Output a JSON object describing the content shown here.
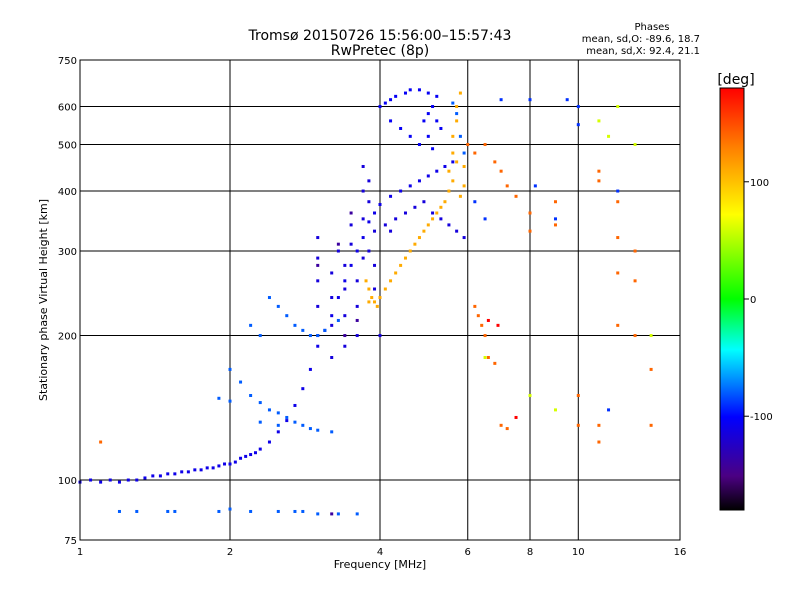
{
  "chart_data": {
    "type": "scatter",
    "title": "Tromsø 20150726 15:56:00–15:57:43",
    "subtitle": "RwPretec (8p)",
    "xlabel": "Frequency [MHz]",
    "ylabel": "Stationary phase Virtual Height [km]",
    "xscale": "log",
    "yscale": "log",
    "xlim": [
      1,
      16
    ],
    "ylim": [
      75,
      750
    ],
    "x_ticks": [
      1,
      2,
      4,
      6,
      8,
      10,
      16
    ],
    "y_ticks": [
      75,
      100,
      200,
      300,
      400,
      500,
      600,
      750
    ],
    "grid": true,
    "stats": {
      "header": "Phases",
      "o_line": "mean, sd,O: -89.6, 18.7",
      "x_line": "mean, sd,X: 92.4, 21.1"
    },
    "colorbar": {
      "label": "[deg]",
      "range": [
        -180,
        180
      ],
      "ticks": [
        100,
        0,
        -100
      ],
      "tick_labels": [
        "100",
        "0",
        "-100"
      ],
      "placement": "right"
    },
    "series": [
      {
        "name": "",
        "phase": -110,
        "points": [
          [
            1.0,
            99
          ],
          [
            1.05,
            100
          ],
          [
            1.1,
            99
          ],
          [
            1.15,
            100
          ],
          [
            1.2,
            99
          ],
          [
            1.25,
            100
          ],
          [
            1.3,
            100
          ],
          [
            1.35,
            101
          ],
          [
            1.4,
            102
          ],
          [
            1.45,
            102
          ],
          [
            1.5,
            103
          ],
          [
            1.55,
            103
          ],
          [
            1.6,
            104
          ],
          [
            1.65,
            104
          ],
          [
            1.7,
            105
          ],
          [
            1.75,
            105
          ],
          [
            1.8,
            106
          ],
          [
            1.85,
            106
          ],
          [
            1.9,
            107
          ],
          [
            1.95,
            108
          ],
          [
            2.0,
            108
          ],
          [
            2.05,
            109
          ],
          [
            2.1,
            111
          ],
          [
            2.15,
            112
          ],
          [
            2.2,
            113
          ],
          [
            2.25,
            114
          ],
          [
            2.3,
            116
          ],
          [
            2.4,
            120
          ],
          [
            2.5,
            126
          ],
          [
            2.6,
            133
          ],
          [
            2.7,
            143
          ],
          [
            2.8,
            155
          ],
          [
            2.9,
            170
          ],
          [
            3.0,
            190
          ],
          [
            3.1,
            205
          ],
          [
            3.2,
            220
          ],
          [
            3.3,
            240
          ],
          [
            3.4,
            260
          ],
          [
            3.5,
            280
          ],
          [
            3.6,
            300
          ],
          [
            3.7,
            320
          ],
          [
            3.8,
            345
          ],
          [
            3.9,
            360
          ],
          [
            4.0,
            375
          ],
          [
            4.2,
            390
          ],
          [
            4.4,
            400
          ],
          [
            4.6,
            410
          ],
          [
            4.8,
            420
          ],
          [
            5.0,
            430
          ],
          [
            5.2,
            440
          ],
          [
            5.4,
            450
          ],
          [
            5.6,
            460
          ]
        ]
      },
      {
        "name": "",
        "phase": -115,
        "points": [
          [
            3.0,
            200
          ],
          [
            3.0,
            230
          ],
          [
            3.0,
            260
          ],
          [
            3.0,
            290
          ],
          [
            3.0,
            320
          ],
          [
            3.2,
            180
          ],
          [
            3.2,
            210
          ],
          [
            3.2,
            240
          ],
          [
            3.2,
            270
          ],
          [
            3.3,
            300
          ],
          [
            3.4,
            190
          ],
          [
            3.4,
            220
          ],
          [
            3.4,
            250
          ],
          [
            3.4,
            280
          ],
          [
            3.5,
            310
          ],
          [
            3.5,
            340
          ],
          [
            3.6,
            200
          ],
          [
            3.6,
            230
          ],
          [
            3.6,
            260
          ],
          [
            3.7,
            290
          ],
          [
            3.7,
            350
          ],
          [
            3.7,
            400
          ],
          [
            3.7,
            450
          ],
          [
            3.8,
            300
          ],
          [
            3.8,
            380
          ],
          [
            3.8,
            420
          ],
          [
            3.9,
            250
          ],
          [
            3.9,
            280
          ],
          [
            3.9,
            330
          ],
          [
            4.0,
            200
          ],
          [
            4.1,
            340
          ],
          [
            4.2,
            330
          ],
          [
            4.3,
            350
          ],
          [
            4.5,
            360
          ],
          [
            4.7,
            370
          ],
          [
            4.9,
            380
          ],
          [
            5.1,
            360
          ],
          [
            5.3,
            350
          ],
          [
            5.5,
            340
          ],
          [
            5.7,
            330
          ],
          [
            5.9,
            320
          ]
        ]
      },
      {
        "name": "",
        "phase": -105,
        "points": [
          [
            4.0,
            600
          ],
          [
            4.1,
            610
          ],
          [
            4.2,
            620
          ],
          [
            4.3,
            630
          ],
          [
            4.5,
            640
          ],
          [
            4.6,
            650
          ],
          [
            4.8,
            650
          ],
          [
            5.0,
            640
          ],
          [
            5.2,
            630
          ],
          [
            5.1,
            600
          ],
          [
            5.0,
            580
          ],
          [
            4.9,
            560
          ],
          [
            5.2,
            560
          ],
          [
            5.3,
            540
          ],
          [
            5.0,
            520
          ],
          [
            4.8,
            500
          ],
          [
            5.1,
            490
          ],
          [
            4.2,
            560
          ],
          [
            4.4,
            540
          ],
          [
            4.6,
            520
          ]
        ]
      },
      {
        "name": "",
        "phase": -80,
        "points": [
          [
            2.4,
            240
          ],
          [
            2.5,
            230
          ],
          [
            2.6,
            220
          ],
          [
            2.7,
            210
          ],
          [
            2.8,
            205
          ],
          [
            2.9,
            200
          ],
          [
            3.0,
            200
          ],
          [
            3.1,
            205
          ],
          [
            3.3,
            215
          ],
          [
            2.2,
            210
          ],
          [
            2.3,
            200
          ],
          [
            2.0,
            170
          ],
          [
            2.1,
            160
          ],
          [
            2.2,
            150
          ],
          [
            2.3,
            145
          ],
          [
            2.4,
            140
          ],
          [
            2.5,
            138
          ],
          [
            2.6,
            135
          ],
          [
            2.7,
            132
          ],
          [
            2.8,
            130
          ],
          [
            2.9,
            128
          ],
          [
            3.0,
            127
          ],
          [
            3.2,
            126
          ],
          [
            1.9,
            148
          ],
          [
            2.0,
            146
          ],
          [
            2.3,
            132
          ],
          [
            2.5,
            130
          ],
          [
            1.2,
            86
          ],
          [
            1.3,
            86
          ],
          [
            1.5,
            86
          ],
          [
            1.55,
            86
          ],
          [
            1.9,
            86
          ],
          [
            2.0,
            87
          ],
          [
            2.2,
            86
          ],
          [
            2.5,
            86
          ],
          [
            2.7,
            86
          ],
          [
            2.8,
            86
          ],
          [
            3.0,
            85
          ],
          [
            3.3,
            85
          ],
          [
            3.6,
            85
          ],
          [
            5.6,
            610
          ],
          [
            5.7,
            580
          ],
          [
            5.8,
            520
          ],
          [
            5.9,
            480
          ]
        ]
      },
      {
        "name": "",
        "phase": 110,
        "points": [
          [
            3.8,
            250
          ],
          [
            3.85,
            240
          ],
          [
            3.9,
            235
          ],
          [
            3.95,
            230
          ],
          [
            4.0,
            240
          ],
          [
            4.1,
            250
          ],
          [
            4.2,
            260
          ],
          [
            4.3,
            270
          ],
          [
            4.4,
            280
          ],
          [
            4.5,
            290
          ],
          [
            4.6,
            300
          ],
          [
            4.7,
            310
          ],
          [
            4.8,
            320
          ],
          [
            4.9,
            330
          ],
          [
            5.0,
            340
          ],
          [
            5.1,
            350
          ],
          [
            5.2,
            360
          ],
          [
            5.3,
            370
          ],
          [
            5.4,
            380
          ],
          [
            5.5,
            400
          ],
          [
            5.5,
            440
          ],
          [
            5.6,
            480
          ],
          [
            5.6,
            520
          ],
          [
            5.7,
            560
          ],
          [
            5.7,
            600
          ],
          [
            5.8,
            640
          ],
          [
            5.6,
            420
          ],
          [
            5.7,
            460
          ],
          [
            3.75,
            260
          ],
          [
            3.8,
            235
          ],
          [
            5.8,
            390
          ],
          [
            5.9,
            410
          ],
          [
            5.9,
            450
          ]
        ]
      },
      {
        "name": "",
        "phase": 140,
        "points": [
          [
            1.1,
            120
          ],
          [
            6.2,
            230
          ],
          [
            6.3,
            220
          ],
          [
            6.4,
            210
          ],
          [
            6.5,
            200
          ],
          [
            6.6,
            180
          ],
          [
            6.8,
            175
          ],
          [
            7.0,
            130
          ],
          [
            7.2,
            128
          ],
          [
            10.0,
            150
          ],
          [
            10.0,
            130
          ],
          [
            11.0,
            130
          ],
          [
            11.0,
            120
          ],
          [
            11.0,
            440
          ],
          [
            11.0,
            420
          ],
          [
            12.0,
            380
          ],
          [
            12.0,
            320
          ],
          [
            12.0,
            270
          ],
          [
            12.0,
            210
          ],
          [
            13.0,
            300
          ],
          [
            13.0,
            260
          ],
          [
            13.0,
            200
          ],
          [
            14.0,
            170
          ],
          [
            14.0,
            130
          ],
          [
            6.5,
            500
          ],
          [
            6.8,
            460
          ],
          [
            7.0,
            440
          ],
          [
            7.2,
            410
          ],
          [
            7.5,
            390
          ],
          [
            8.0,
            360
          ],
          [
            8.0,
            330
          ],
          [
            9.0,
            380
          ],
          [
            9.0,
            340
          ],
          [
            6.0,
            500
          ],
          [
            6.2,
            480
          ]
        ]
      },
      {
        "name": "",
        "phase": 180,
        "points": [
          [
            6.6,
            215
          ],
          [
            6.9,
            210
          ],
          [
            7.5,
            135
          ]
        ]
      },
      {
        "name": "",
        "phase": 60,
        "points": [
          [
            6.5,
            180
          ],
          [
            8.0,
            150
          ],
          [
            9.0,
            140
          ],
          [
            12.0,
            600
          ],
          [
            11.0,
            560
          ],
          [
            11.5,
            520
          ],
          [
            13.0,
            500
          ],
          [
            14.0,
            200
          ]
        ]
      },
      {
        "name": "",
        "phase": -90,
        "points": [
          [
            7.0,
            620
          ],
          [
            8.0,
            620
          ],
          [
            9.5,
            620
          ],
          [
            10.0,
            600
          ],
          [
            8.2,
            410
          ],
          [
            9.0,
            350
          ],
          [
            10.0,
            550
          ],
          [
            12.0,
            400
          ],
          [
            11.5,
            140
          ],
          [
            6.2,
            380
          ],
          [
            6.5,
            350
          ]
        ]
      },
      {
        "name": "",
        "phase": -140,
        "points": [
          [
            3.2,
            85
          ],
          [
            3.4,
            200
          ],
          [
            3.6,
            215
          ],
          [
            3.0,
            280
          ],
          [
            3.3,
            310
          ],
          [
            3.5,
            360
          ]
        ]
      }
    ]
  }
}
